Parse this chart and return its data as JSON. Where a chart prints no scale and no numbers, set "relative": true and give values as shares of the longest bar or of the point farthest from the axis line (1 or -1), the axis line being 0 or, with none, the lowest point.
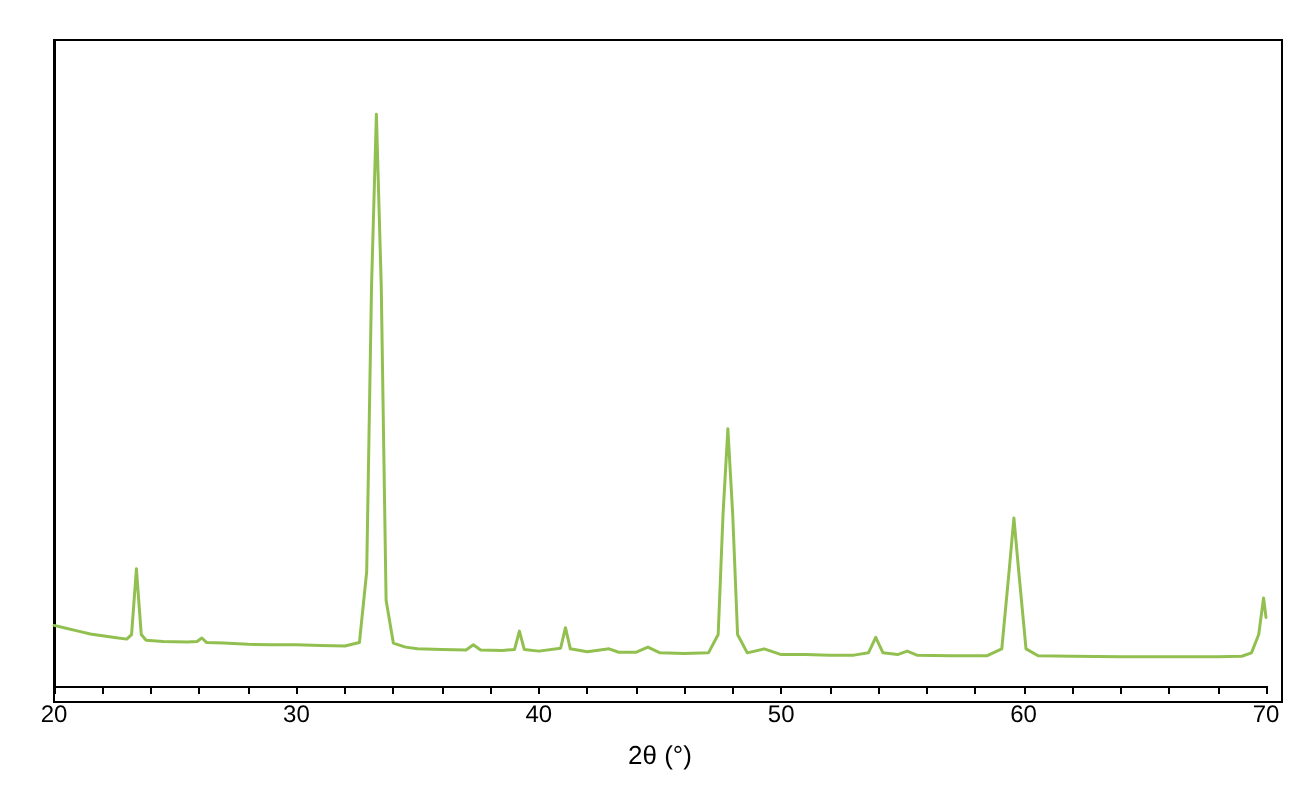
{
  "chart_data": {
    "type": "line",
    "relative": true,
    "xlabel": "2θ (°)",
    "xlim": [
      20,
      70
    ],
    "xticks": [
      20,
      {
        "value": 22,
        "label": null
      },
      {
        "value": 24,
        "label": null
      },
      {
        "value": 26,
        "label": null
      },
      {
        "value": 28,
        "label": null
      },
      30,
      {
        "value": 32,
        "label": null
      },
      {
        "value": 34,
        "label": null
      },
      {
        "value": 36,
        "label": null
      },
      {
        "value": 38,
        "label": null
      },
      40,
      {
        "value": 42,
        "label": null
      },
      {
        "value": 44,
        "label": null
      },
      {
        "value": 46,
        "label": null
      },
      {
        "value": 48,
        "label": null
      },
      50,
      {
        "value": 52,
        "label": null
      },
      {
        "value": 54,
        "label": null
      },
      {
        "value": 56,
        "label": null
      },
      {
        "value": 58,
        "label": null
      },
      60,
      {
        "value": 62,
        "label": null
      },
      {
        "value": 64,
        "label": null
      },
      {
        "value": 66,
        "label": null
      },
      {
        "value": 68,
        "label": null
      },
      70
    ],
    "grid": false,
    "marker": "none",
    "line_style": "solid",
    "series": [
      {
        "color": "#92c050",
        "x": [
          20,
          20.5,
          21,
          21.5,
          22,
          22.5,
          23,
          23.2,
          23.4,
          23.6,
          23.8,
          24.5,
          25.5,
          25.9,
          26.1,
          26.3,
          27,
          28,
          29,
          30,
          31,
          32,
          32.6,
          32.9,
          33.1,
          33.3,
          33.5,
          33.7,
          34,
          34.5,
          35,
          36,
          37,
          37.3,
          37.6,
          38.5,
          39,
          39.2,
          39.4,
          40,
          40.9,
          41.1,
          41.3,
          42,
          42.9,
          43.3,
          44,
          44.5,
          45,
          46,
          47,
          47.4,
          47.6,
          47.8,
          48,
          48.2,
          48.6,
          49.3,
          50,
          51,
          52,
          53,
          53.6,
          53.9,
          54.2,
          54.8,
          55.2,
          55.6,
          57,
          58.5,
          59.1,
          59.4,
          59.6,
          59.8,
          60.1,
          60.6,
          62,
          64,
          66,
          68,
          69,
          69.4,
          69.7,
          69.9,
          70
        ],
        "values": [
          0.106,
          0.101,
          0.096,
          0.091,
          0.088,
          0.085,
          0.082,
          0.09,
          0.205,
          0.09,
          0.08,
          0.078,
          0.077,
          0.078,
          0.084,
          0.076,
          0.075,
          0.073,
          0.072,
          0.072,
          0.071,
          0.07,
          0.076,
          0.2,
          0.7,
          1.0,
          0.7,
          0.15,
          0.075,
          0.068,
          0.065,
          0.064,
          0.063,
          0.072,
          0.063,
          0.062,
          0.064,
          0.096,
          0.064,
          0.061,
          0.066,
          0.102,
          0.065,
          0.06,
          0.065,
          0.059,
          0.059,
          0.068,
          0.058,
          0.057,
          0.058,
          0.09,
          0.3,
          0.45,
          0.3,
          0.09,
          0.058,
          0.065,
          0.055,
          0.055,
          0.054,
          0.054,
          0.058,
          0.085,
          0.058,
          0.055,
          0.061,
          0.054,
          0.053,
          0.053,
          0.065,
          0.2,
          0.294,
          0.2,
          0.065,
          0.053,
          0.052,
          0.051,
          0.051,
          0.051,
          0.052,
          0.058,
          0.09,
          0.154,
          0.12
        ]
      }
    ]
  }
}
